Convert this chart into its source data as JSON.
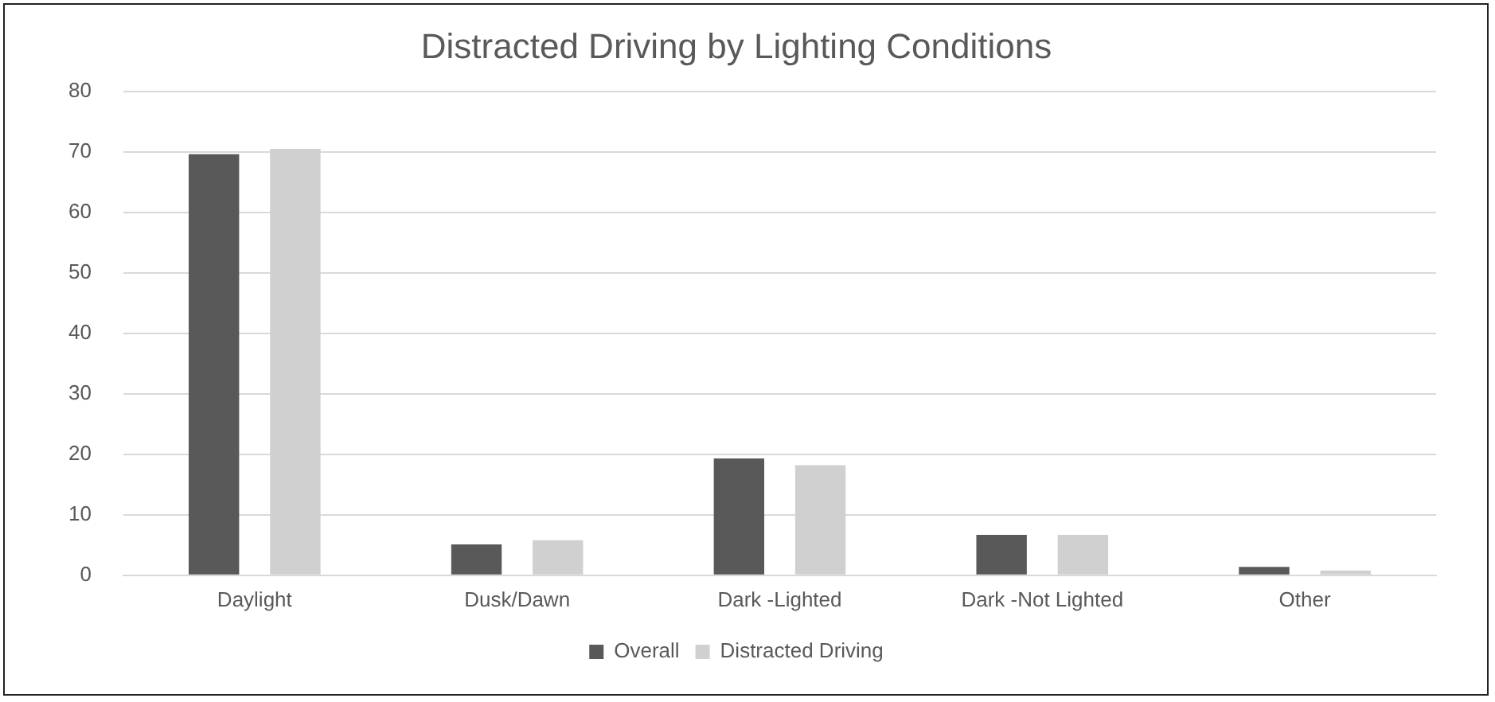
{
  "chart_data": {
    "type": "bar",
    "title": "Distracted Driving by Lighting Conditions",
    "categories": [
      "Daylight",
      "Dusk/Dawn",
      "Dark -Lighted",
      "Dark -Not Lighted",
      "Other"
    ],
    "series": [
      {
        "name": "Overall",
        "color": "#595959",
        "values": [
          69.6,
          5.1,
          19.3,
          6.7,
          1.4
        ]
      },
      {
        "name": "Distracted Driving",
        "color": "#d0d0d0",
        "values": [
          70.5,
          5.8,
          18.2,
          6.7,
          0.8
        ]
      }
    ],
    "ylim": [
      0,
      80
    ],
    "yticks": [
      0,
      10,
      20,
      30,
      40,
      50,
      60,
      70,
      80
    ],
    "grid": "y",
    "legend": "bottom"
  }
}
